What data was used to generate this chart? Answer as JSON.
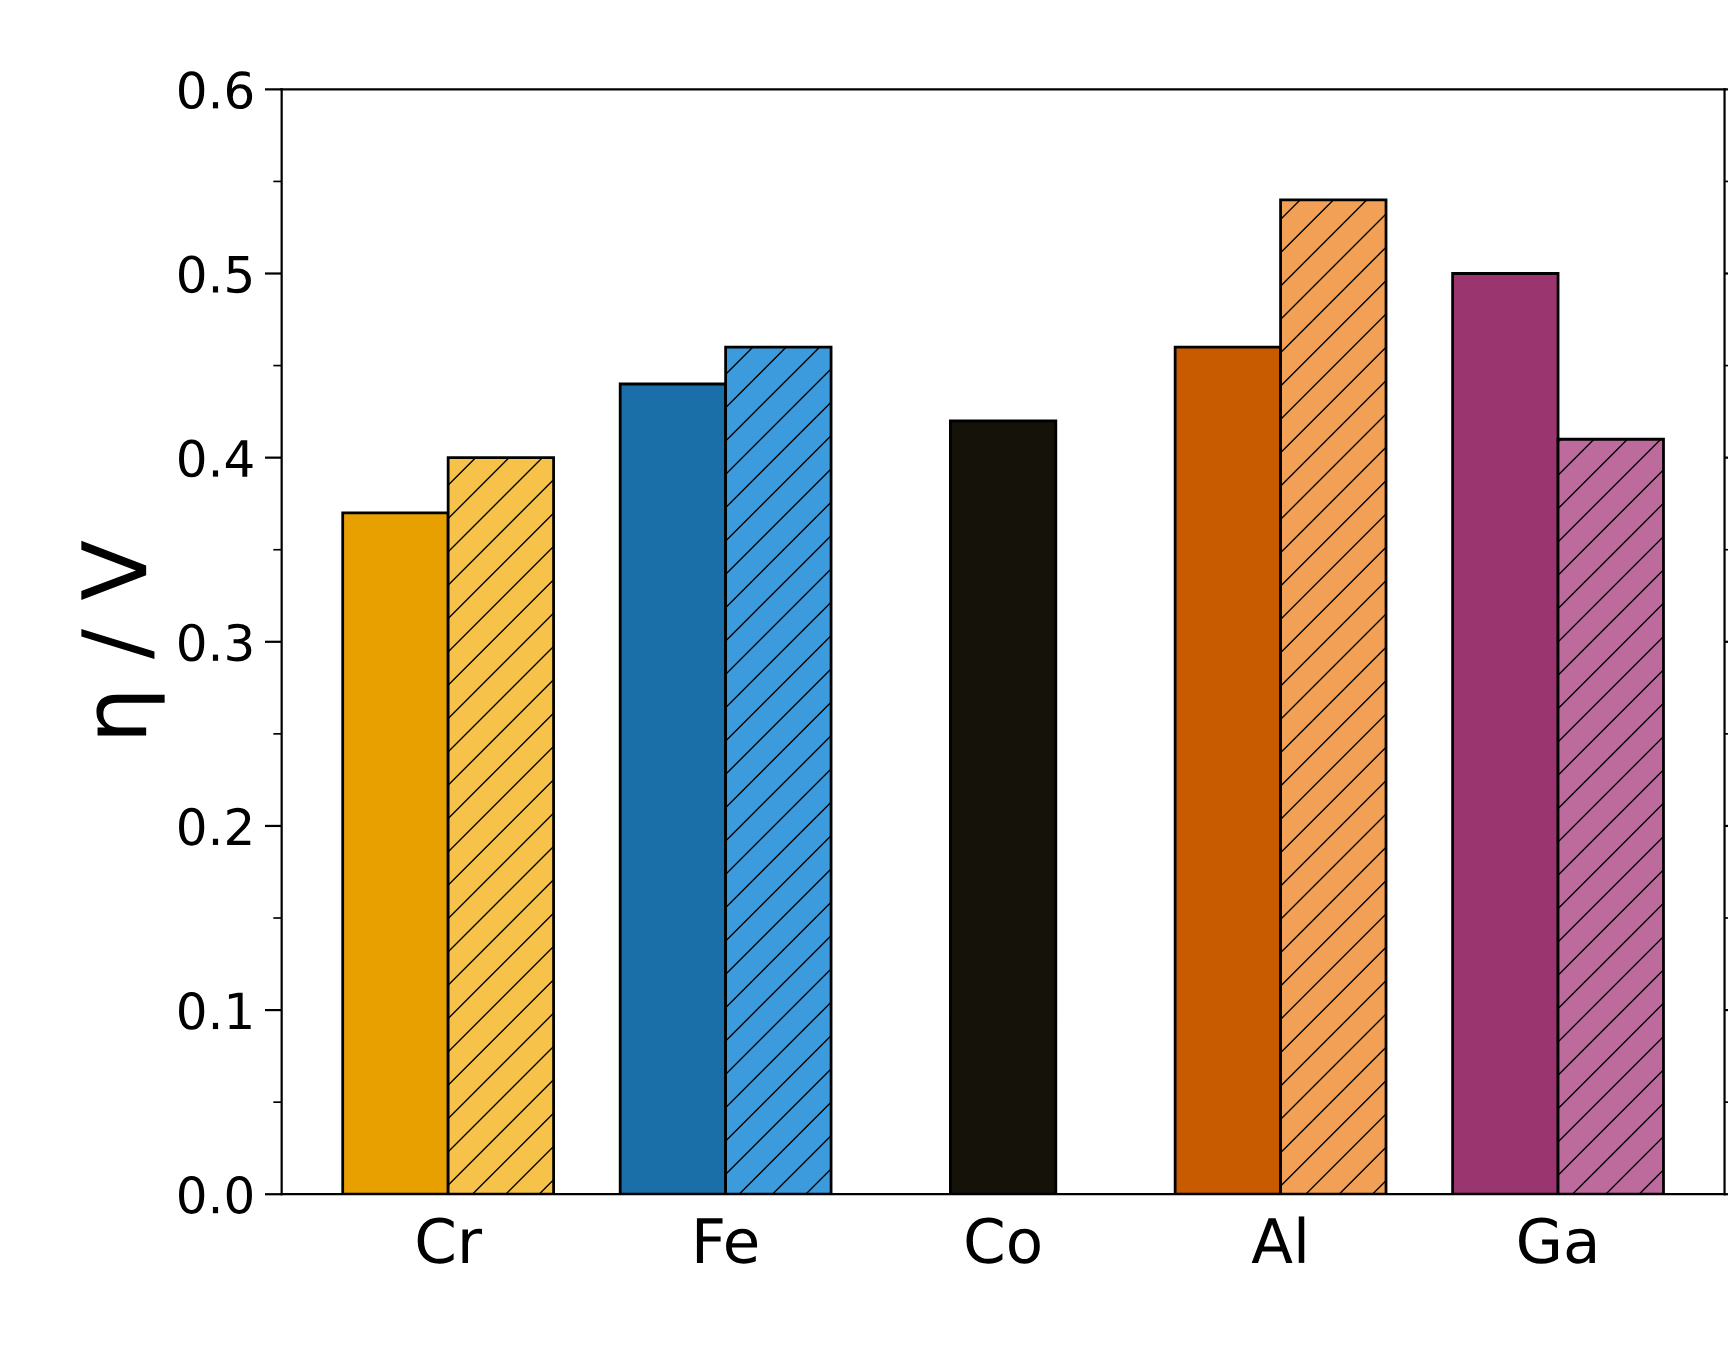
{
  "chart_data": {
    "type": "bar",
    "ylabel": "η / V",
    "categories": [
      "Cr",
      "Fe",
      "Co",
      "Al",
      "Ga"
    ],
    "series": [
      {
        "colors": [
          "#e8a000",
          "#1a6fa8",
          "#15120a",
          "#c85a00",
          "#9b3570"
        ],
        "values": [
          0.37,
          0.44,
          0.42,
          0.46,
          0.5
        ]
      },
      {
        "colors": [
          "#f7c24a",
          "#3c9bdc",
          null,
          "#f2a055",
          "#bd6b9d"
        ],
        "values": [
          0.4,
          0.46,
          null,
          0.54,
          0.41
        ]
      }
    ],
    "ylim": [
      0,
      0.6
    ],
    "yticks": [
      {
        "value": 0,
        "label": "0.0"
      },
      0.1,
      0.2,
      0.3,
      0.4,
      0.5,
      0.6
    ],
    "grid": false,
    "legend": false
  }
}
